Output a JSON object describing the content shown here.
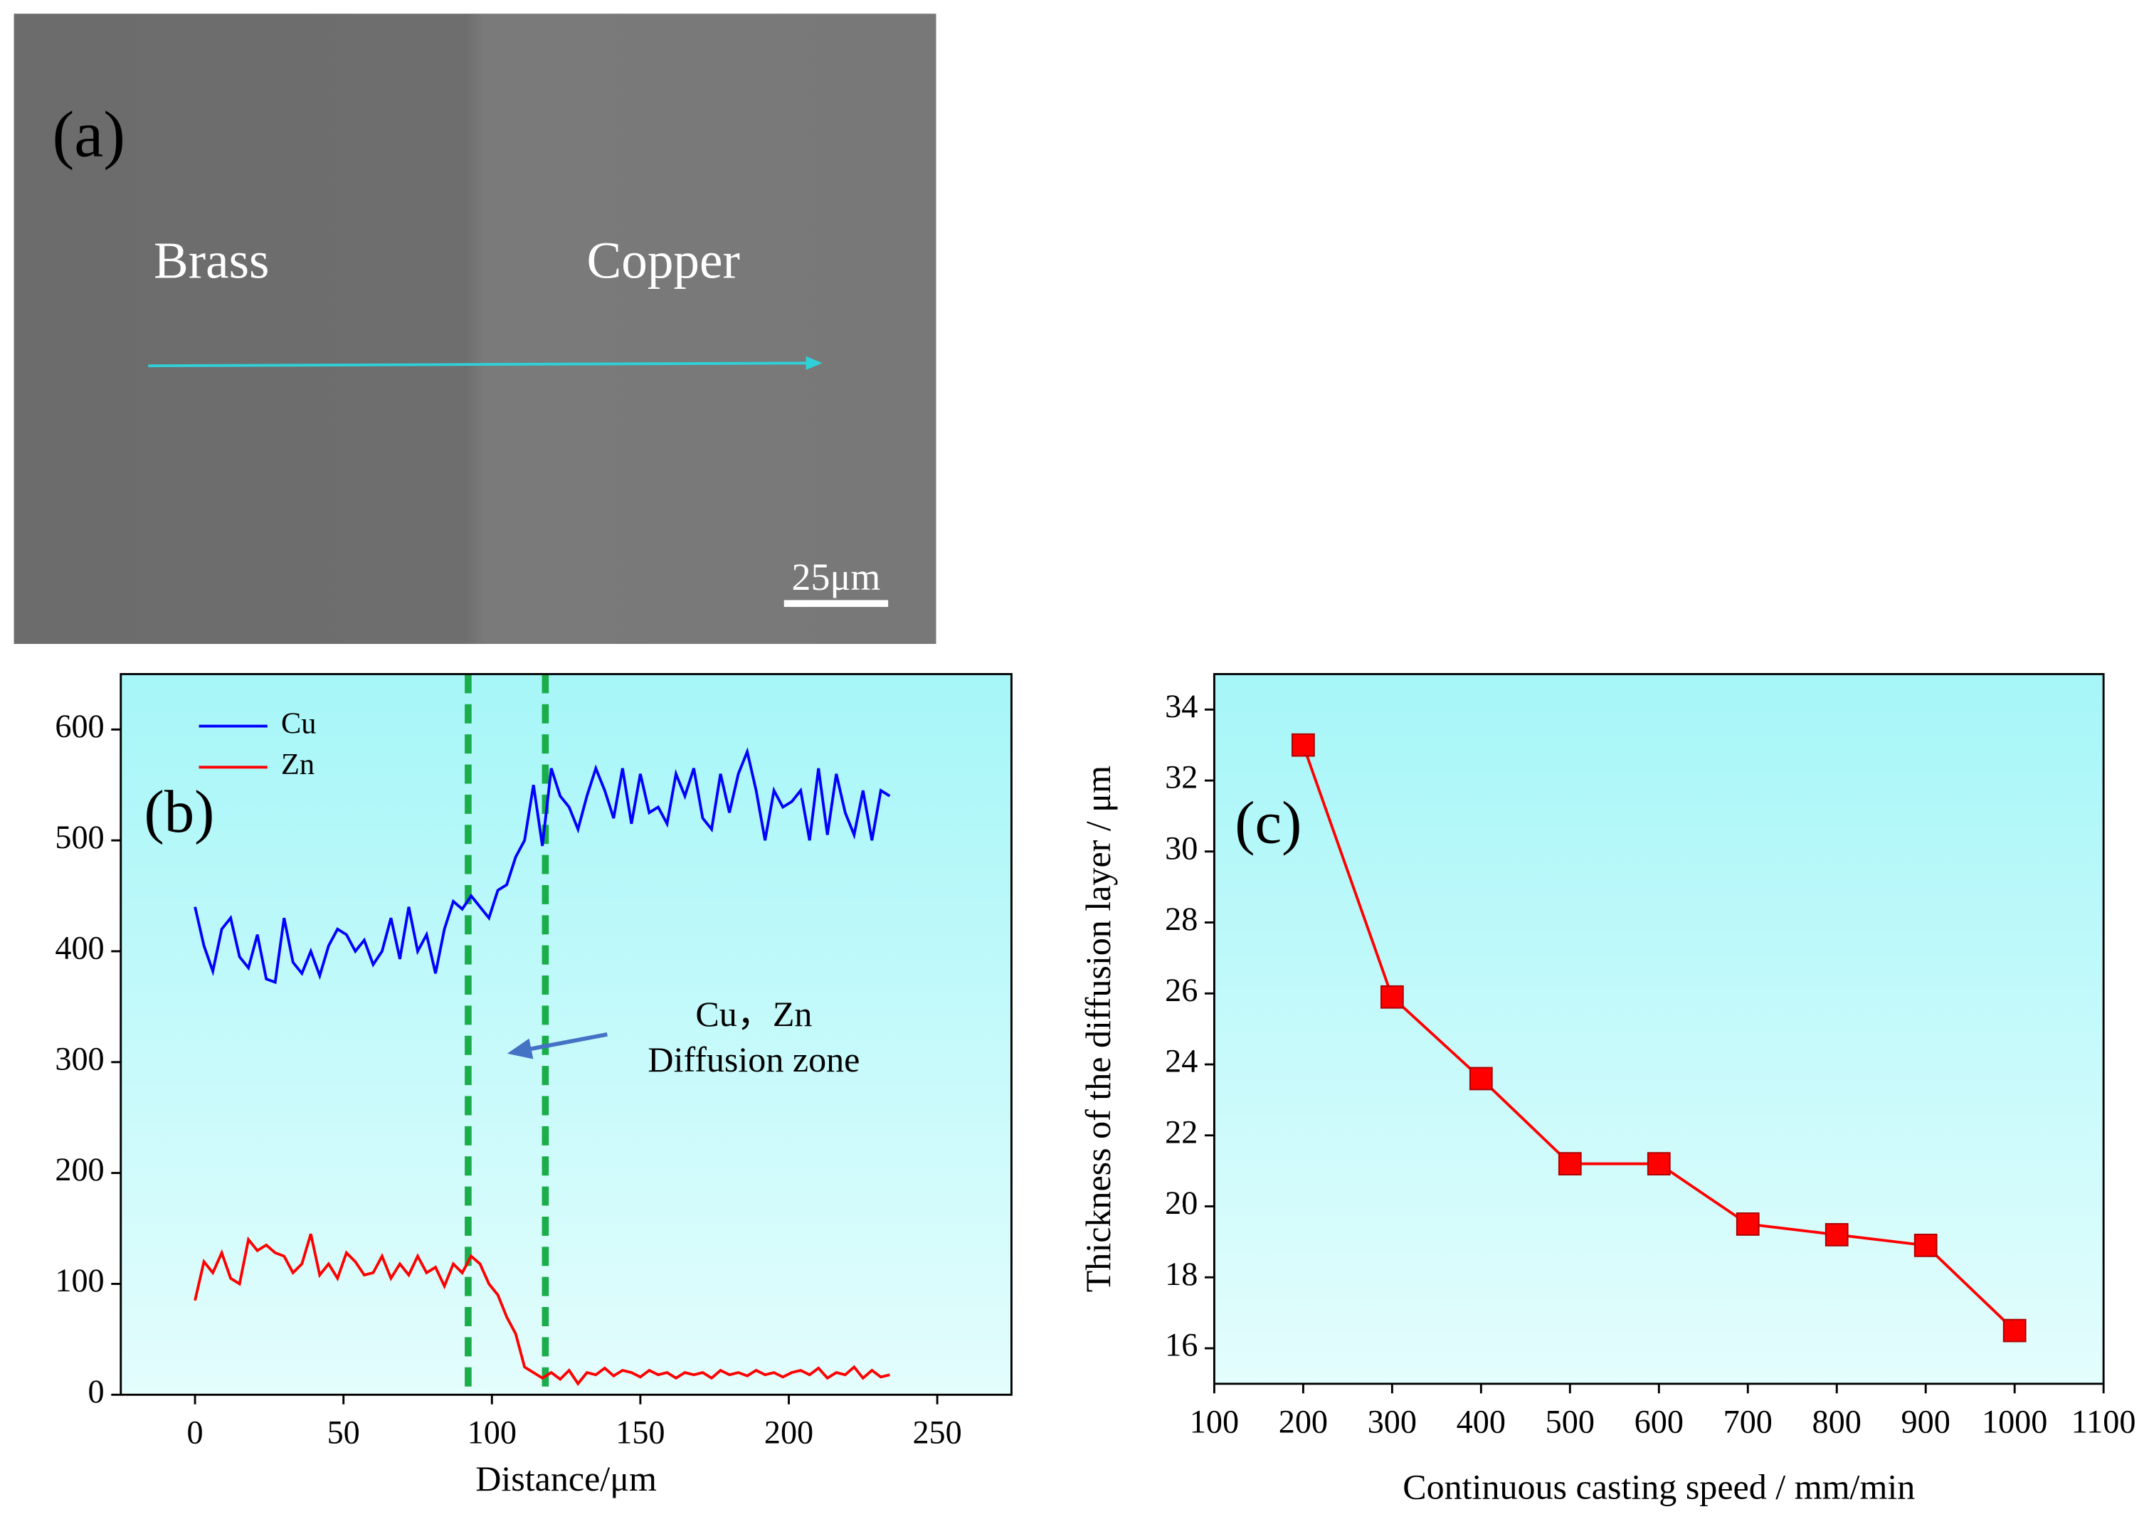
{
  "image_panel": {
    "label": "(a)",
    "regions": [
      "Brass",
      "Copper"
    ],
    "scale_bar": "25μm"
  },
  "chart_data": [
    {
      "type": "line",
      "label": "(b)",
      "xlabel": "Distance/μm",
      "xlim": [
        -25,
        275
      ],
      "xticks": [
        0,
        50,
        100,
        150,
        200,
        250
      ],
      "ylim": [
        0,
        650
      ],
      "yticks": [
        0,
        100,
        200,
        300,
        400,
        500,
        600
      ],
      "x": [
        0,
        3,
        6,
        9,
        12,
        15,
        18,
        21,
        24,
        27,
        30,
        33,
        36,
        39,
        42,
        45,
        48,
        51,
        54,
        57,
        60,
        63,
        66,
        69,
        72,
        75,
        78,
        81,
        84,
        87,
        90,
        93,
        96,
        99,
        102,
        105,
        108,
        111,
        114,
        117,
        120,
        123,
        126,
        129,
        132,
        135,
        138,
        141,
        144,
        147,
        150,
        153,
        156,
        159,
        162,
        165,
        168,
        171,
        174,
        177,
        180,
        183,
        186,
        189,
        192,
        195,
        198,
        201,
        204,
        207,
        210,
        213,
        216,
        219,
        222,
        225,
        228,
        231,
        234
      ],
      "series": [
        {
          "name": "Cu",
          "color": "#0000ff",
          "values": [
            440,
            405,
            382,
            420,
            430,
            395,
            385,
            415,
            375,
            372,
            430,
            390,
            380,
            400,
            378,
            405,
            420,
            415,
            400,
            410,
            388,
            400,
            430,
            393,
            440,
            400,
            415,
            380,
            420,
            445,
            438,
            450,
            440,
            430,
            455,
            460,
            485,
            500,
            550,
            495,
            565,
            540,
            530,
            510,
            540,
            565,
            545,
            520,
            565,
            515,
            560,
            525,
            530,
            515,
            560,
            540,
            565,
            520,
            510,
            560,
            525,
            560,
            580,
            545,
            500,
            545,
            530,
            535,
            545,
            500,
            565,
            505,
            560,
            525,
            505,
            545,
            500,
            545,
            540
          ]
        },
        {
          "name": "Zn",
          "color": "#ff0000",
          "values": [
            85,
            120,
            110,
            128,
            105,
            100,
            140,
            130,
            135,
            128,
            125,
            110,
            118,
            145,
            108,
            118,
            105,
            128,
            120,
            108,
            110,
            125,
            105,
            118,
            108,
            125,
            110,
            115,
            98,
            118,
            110,
            125,
            118,
            100,
            90,
            70,
            55,
            25,
            20,
            15,
            20,
            14,
            22,
            10,
            20,
            18,
            24,
            17,
            22,
            20,
            16,
            22,
            18,
            20,
            15,
            20,
            18,
            20,
            15,
            22,
            18,
            20,
            17,
            22,
            18,
            20,
            16,
            20,
            22,
            18,
            24,
            15,
            20,
            18,
            25,
            15,
            22,
            16,
            18
          ]
        }
      ],
      "vlines": [
        92,
        118
      ],
      "vline_color": "#1aad4a",
      "annotation": [
        "Cu，Zn",
        "Diffusion zone"
      ],
      "legend": "upper left",
      "background": [
        "#a6f6f8",
        "#e4fdfd"
      ]
    },
    {
      "type": "line",
      "marker": "square",
      "label": "(c)",
      "xlabel": "Continuous casting speed / mm/min",
      "ylabel": "Thickness of the diffusion layer / μm",
      "xlim": [
        100,
        1100
      ],
      "xticks": [
        100,
        200,
        300,
        400,
        500,
        600,
        700,
        800,
        900,
        1000,
        1100
      ],
      "ylim": [
        15,
        35
      ],
      "yticks": [
        16,
        18,
        20,
        22,
        24,
        26,
        28,
        30,
        32,
        34
      ],
      "x": [
        200,
        300,
        400,
        500,
        600,
        700,
        800,
        900,
        1000
      ],
      "series": [
        {
          "color": "#ff0000",
          "values": [
            33,
            25.9,
            23.6,
            21.2,
            21.2,
            19.5,
            19.2,
            18.9,
            16.5
          ]
        }
      ],
      "background": [
        "#a6f6f8",
        "#e4fdfd"
      ]
    }
  ]
}
